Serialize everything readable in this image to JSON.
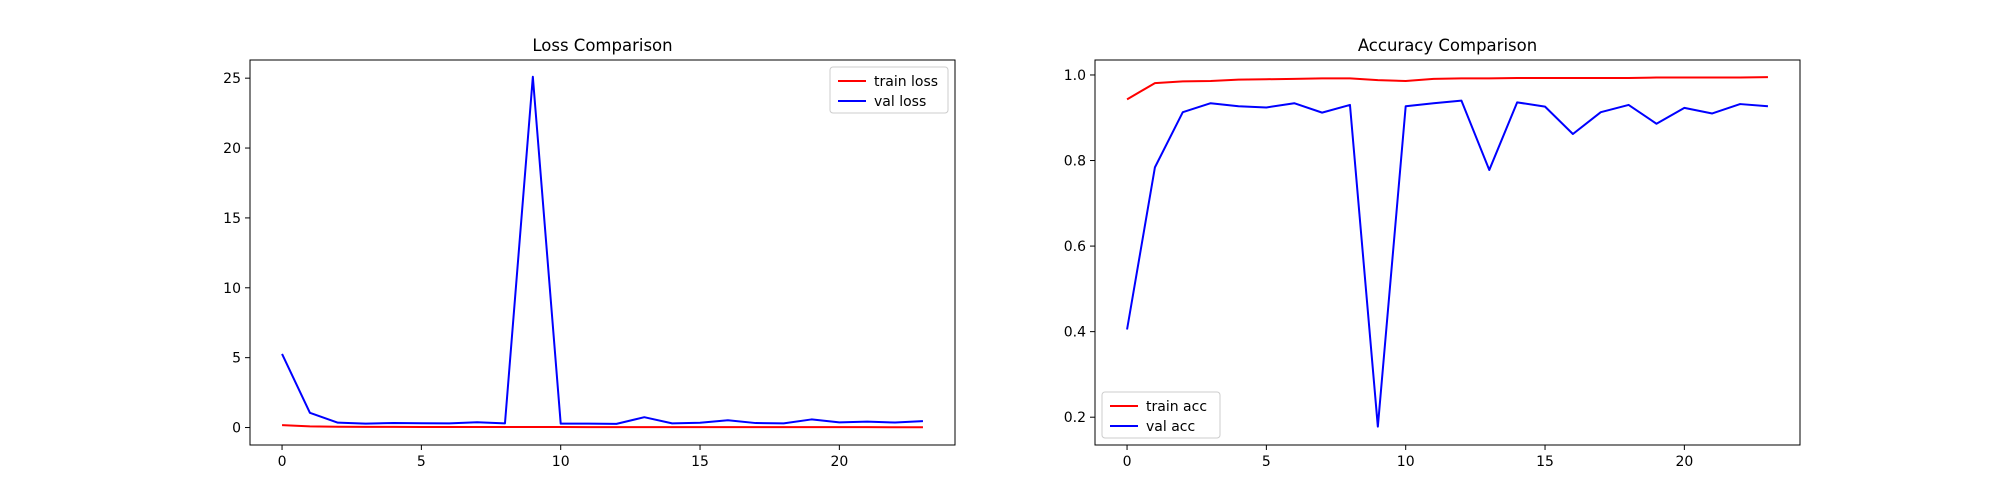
{
  "chart_data": [
    {
      "type": "line",
      "title": "Loss Comparison",
      "xlabel": "",
      "ylabel": "",
      "x": [
        0,
        1,
        2,
        3,
        4,
        5,
        6,
        7,
        8,
        9,
        10,
        11,
        12,
        13,
        14,
        15,
        16,
        17,
        18,
        19,
        20,
        21,
        22,
        23
      ],
      "xlim": [
        -1.15,
        24.15
      ],
      "ylim": [
        -1.25,
        26.3
      ],
      "xticks": [
        0,
        5,
        10,
        15,
        20
      ],
      "yticks": [
        0,
        5,
        10,
        15,
        20,
        25
      ],
      "legend": "upper right",
      "grid": false,
      "series": [
        {
          "name": "train loss",
          "color": "#ff0000",
          "values": [
            0.17,
            0.08,
            0.06,
            0.05,
            0.05,
            0.04,
            0.04,
            0.04,
            0.04,
            0.04,
            0.04,
            0.03,
            0.03,
            0.03,
            0.03,
            0.03,
            0.03,
            0.03,
            0.03,
            0.03,
            0.03,
            0.03,
            0.02,
            0.02
          ]
        },
        {
          "name": "val loss",
          "color": "#0000ff",
          "values": [
            5.27,
            1.05,
            0.35,
            0.28,
            0.32,
            0.31,
            0.3,
            0.38,
            0.3,
            25.1,
            0.28,
            0.28,
            0.26,
            0.74,
            0.3,
            0.34,
            0.52,
            0.32,
            0.3,
            0.58,
            0.37,
            0.42,
            0.36,
            0.46
          ]
        }
      ]
    },
    {
      "type": "line",
      "title": "Accuracy Comparison",
      "xlabel": "",
      "ylabel": "",
      "x": [
        0,
        1,
        2,
        3,
        4,
        5,
        6,
        7,
        8,
        9,
        10,
        11,
        12,
        13,
        14,
        15,
        16,
        17,
        18,
        19,
        20,
        21,
        22,
        23
      ],
      "xlim": [
        -1.15,
        24.15
      ],
      "ylim": [
        0.135,
        1.035
      ],
      "xticks": [
        0,
        5,
        10,
        15,
        20
      ],
      "yticks": [
        0.2,
        0.4,
        0.6,
        0.8,
        1.0
      ],
      "ytick_labels": [
        "0.2",
        "0.4",
        "0.6",
        "0.8",
        "1.0"
      ],
      "legend": "lower left",
      "grid": false,
      "series": [
        {
          "name": "train acc",
          "color": "#ff0000",
          "values": [
            0.943,
            0.981,
            0.985,
            0.986,
            0.989,
            0.99,
            0.991,
            0.992,
            0.992,
            0.988,
            0.986,
            0.991,
            0.992,
            0.992,
            0.993,
            0.993,
            0.993,
            0.993,
            0.993,
            0.994,
            0.994,
            0.994,
            0.994,
            0.995
          ]
        },
        {
          "name": "val acc",
          "color": "#0000ff",
          "values": [
            0.405,
            0.784,
            0.913,
            0.934,
            0.927,
            0.924,
            0.934,
            0.912,
            0.93,
            0.178,
            0.927,
            0.934,
            0.94,
            0.778,
            0.936,
            0.926,
            0.862,
            0.913,
            0.93,
            0.886,
            0.923,
            0.91,
            0.932,
            0.927
          ]
        }
      ]
    }
  ]
}
